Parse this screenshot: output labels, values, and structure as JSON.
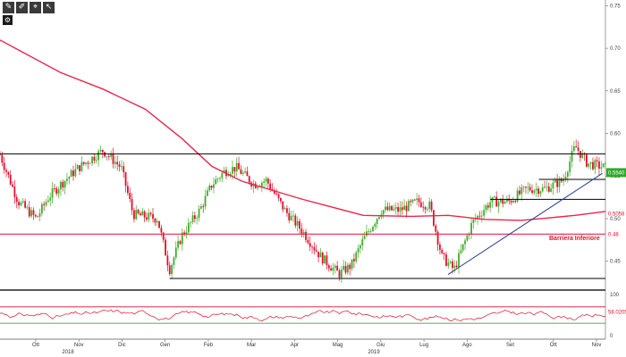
{
  "toolbar": {
    "buttons": [
      {
        "icon": "draw-icon",
        "glyph": "✎"
      },
      {
        "icon": "pencil-icon",
        "glyph": "✐"
      },
      {
        "icon": "crosshair-icon",
        "glyph": "⌖"
      },
      {
        "icon": "pointer-icon",
        "glyph": "↖"
      }
    ],
    "settings_glyph": "⚙"
  },
  "colors": {
    "candle_up": "#3fae2a",
    "candle_down": "#e0102a",
    "ma": "#e8274a",
    "osc": "#e0102a",
    "level_line": "#000000",
    "trend_line": "#1f3a93",
    "green_tag": "#2fa82a",
    "red_tag": "#e0102a"
  },
  "chart_data": {
    "type": "candlestick",
    "y_ticks": [
      "0.75",
      "0.70",
      "0.65",
      "0.60",
      "0.55",
      "0.50",
      "0.45"
    ],
    "ylim": [
      0.4182,
      0.7567
    ],
    "x_months": [
      "Ott",
      "Nov",
      "Dic",
      "Gen",
      "Feb",
      "Mar",
      "Apr",
      "Mag",
      "Giu",
      "Lug",
      "Ago",
      "Set",
      "Ott",
      "Nov"
    ],
    "x_years": [
      "2018",
      "2019"
    ],
    "annotation": "Barriera Inferiore",
    "price_tags": [
      {
        "text": "0.5540",
        "color": "green",
        "value": 0.554
      },
      {
        "text": "0.5058",
        "color": "red",
        "value": 0.5058
      },
      {
        "text": "0.48",
        "color": "red",
        "value": 0.4818
      }
    ],
    "levels": [
      {
        "name": "resistance",
        "value": 0.5761
      },
      {
        "name": "support-red",
        "value": 0.4818
      },
      {
        "name": "support-bottom",
        "value": 0.4297
      }
    ],
    "ma_series": {
      "name": "",
      "points": [
        [
          0,
          0.7097
        ],
        [
          0.1,
          0.6715
        ],
        [
          0.17,
          0.6521
        ],
        [
          0.24,
          0.6285
        ],
        [
          0.3,
          0.5943
        ],
        [
          0.35,
          0.5614
        ],
        [
          0.4,
          0.5438
        ],
        [
          0.5,
          0.5226
        ],
        [
          0.6,
          0.5038
        ],
        [
          0.68,
          0.5026
        ],
        [
          0.74,
          0.5038
        ],
        [
          0.8,
          0.4991
        ],
        [
          0.86,
          0.4979
        ],
        [
          0.9,
          0.5004
        ],
        [
          0.95,
          0.5038
        ],
        [
          1.0,
          0.5084
        ]
      ]
    },
    "price_path": [
      [
        0,
        0.575
      ],
      [
        0.03,
        0.52
      ],
      [
        0.06,
        0.5
      ],
      [
        0.08,
        0.525
      ],
      [
        0.1,
        0.54
      ],
      [
        0.13,
        0.56
      ],
      [
        0.17,
        0.58
      ],
      [
        0.2,
        0.56
      ],
      [
        0.22,
        0.505
      ],
      [
        0.26,
        0.5
      ],
      [
        0.28,
        0.44
      ],
      [
        0.3,
        0.48
      ],
      [
        0.33,
        0.51
      ],
      [
        0.35,
        0.54
      ],
      [
        0.37,
        0.555
      ],
      [
        0.39,
        0.56
      ],
      [
        0.42,
        0.54
      ],
      [
        0.44,
        0.545
      ],
      [
        0.47,
        0.51
      ],
      [
        0.5,
        0.485
      ],
      [
        0.53,
        0.455
      ],
      [
        0.56,
        0.435
      ],
      [
        0.58,
        0.445
      ],
      [
        0.6,
        0.475
      ],
      [
        0.63,
        0.51
      ],
      [
        0.66,
        0.51
      ],
      [
        0.69,
        0.52
      ],
      [
        0.71,
        0.515
      ],
      [
        0.73,
        0.455
      ],
      [
        0.75,
        0.44
      ],
      [
        0.78,
        0.495
      ],
      [
        0.81,
        0.52
      ],
      [
        0.84,
        0.52
      ],
      [
        0.87,
        0.535
      ],
      [
        0.9,
        0.535
      ],
      [
        0.93,
        0.545
      ],
      [
        0.95,
        0.585
      ],
      [
        0.97,
        0.565
      ],
      [
        1.0,
        0.56
      ]
    ],
    "oscillator": {
      "name": "",
      "y_ticks": [
        "100",
        "0"
      ],
      "ylim": [
        0,
        100
      ],
      "tag": "58.0205",
      "tag_value": 58,
      "upper_line": 70,
      "lower_line": 30
    }
  }
}
